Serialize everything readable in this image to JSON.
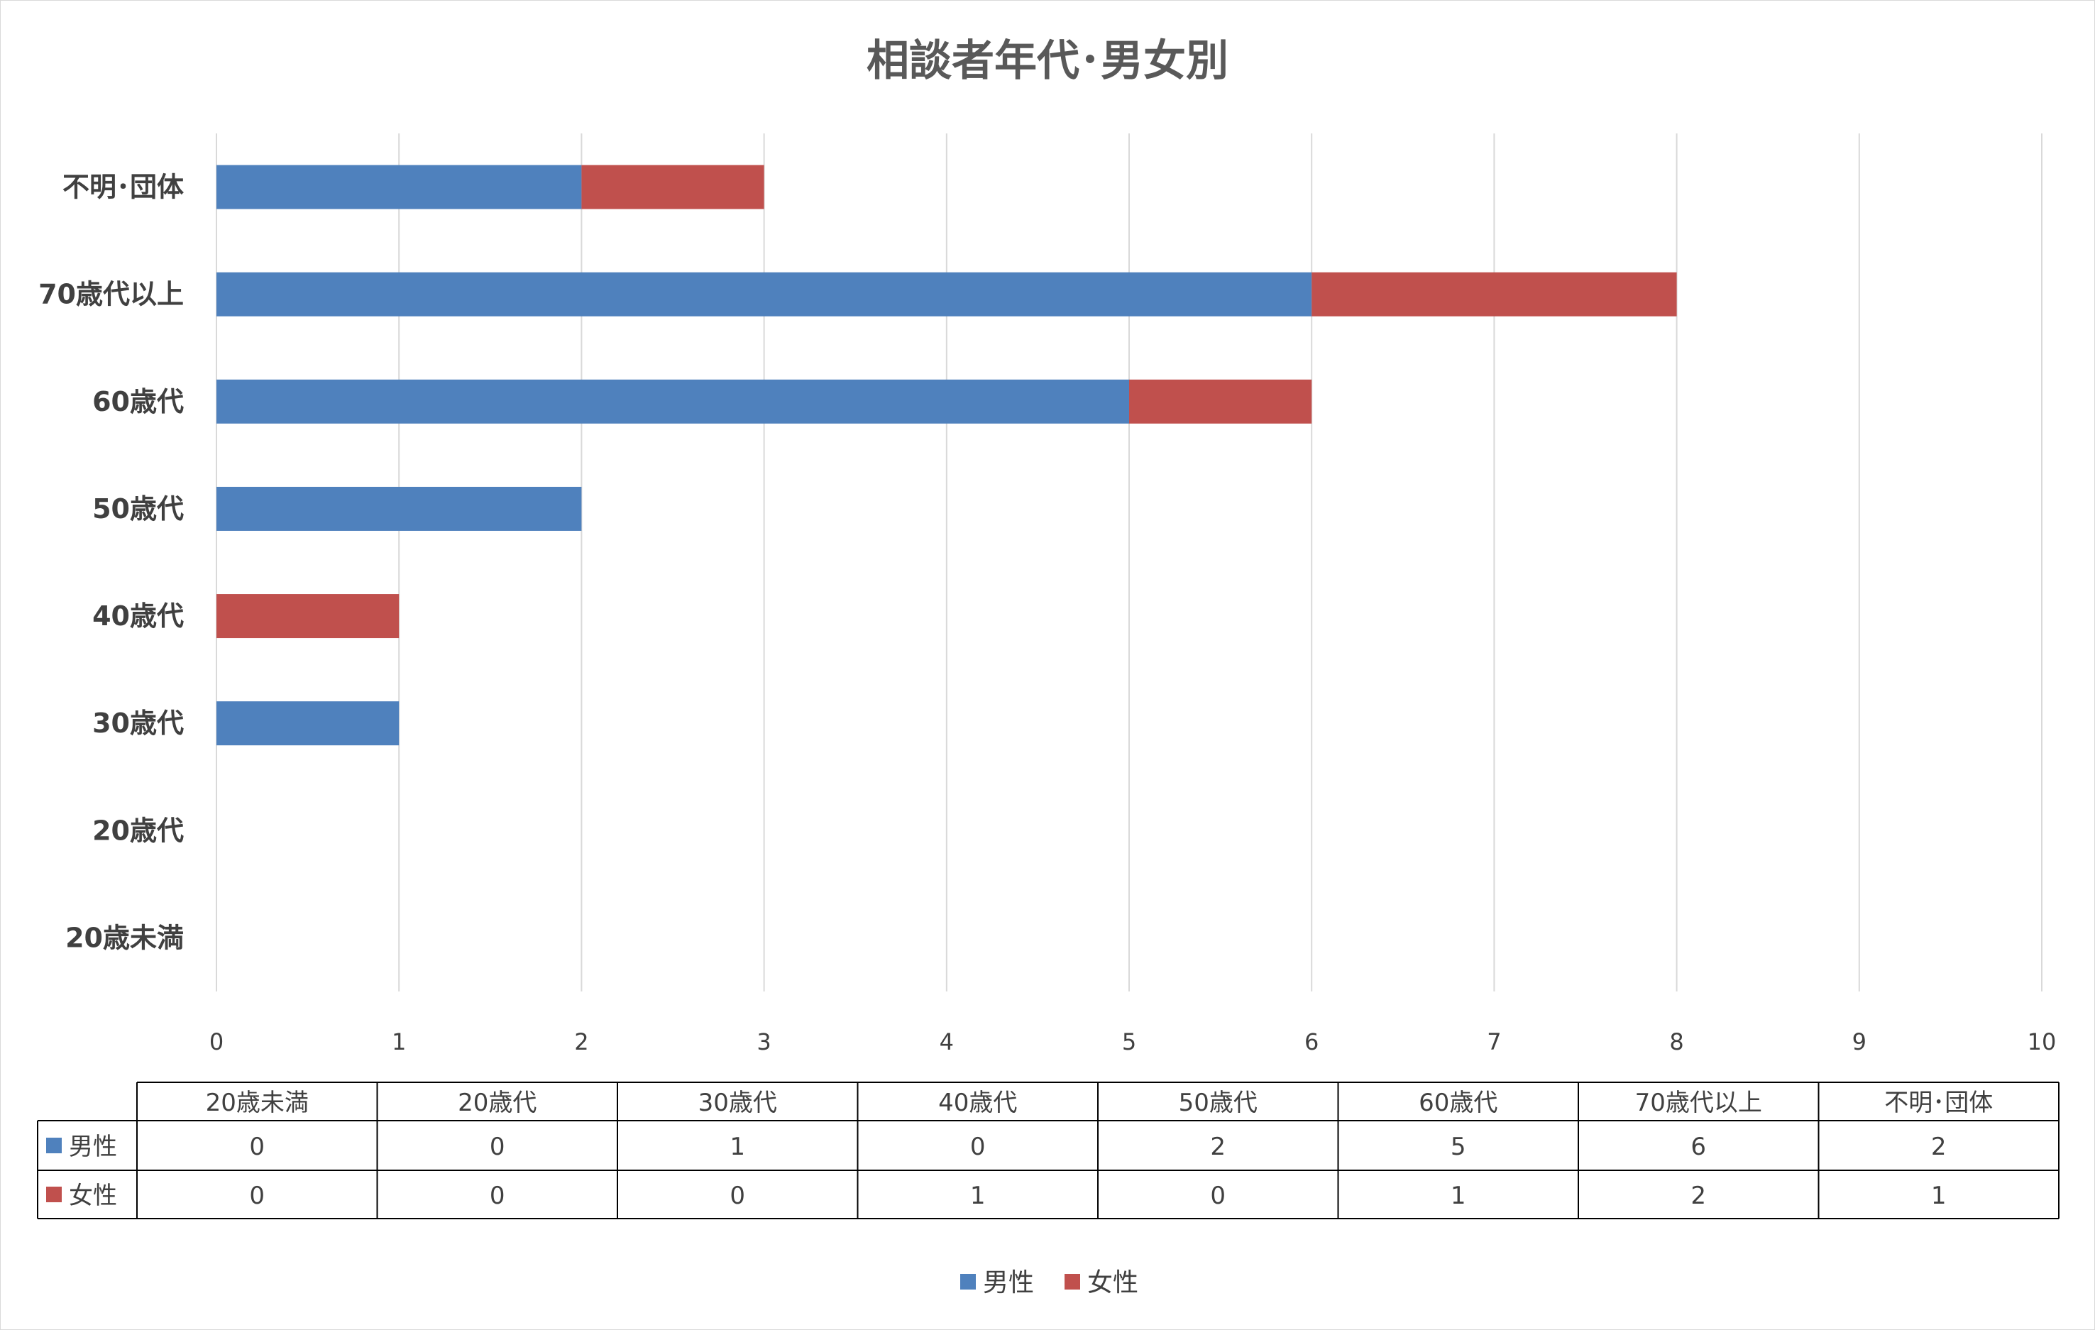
{
  "colors": {
    "male": "#4f81bd",
    "female": "#c0504d",
    "grid": "#d9d9d9",
    "text": "#404040",
    "title": "#595959"
  },
  "chart_data": {
    "type": "bar",
    "orientation": "horizontal",
    "stacked": true,
    "title": "相談者年代･男女別",
    "categories": [
      "20歳未満",
      "20歳代",
      "30歳代",
      "40歳代",
      "50歳代",
      "60歳代",
      "70歳代以上",
      "不明･団体"
    ],
    "series": [
      {
        "name": "男性",
        "values": [
          0,
          0,
          1,
          0,
          2,
          5,
          6,
          2
        ]
      },
      {
        "name": "女性",
        "values": [
          0,
          0,
          0,
          1,
          0,
          1,
          2,
          1
        ]
      }
    ],
    "xlim": [
      0,
      10
    ],
    "xticks": [
      "0",
      "1",
      "2",
      "3",
      "4",
      "5",
      "6",
      "7",
      "8",
      "9",
      "10"
    ],
    "grid": true,
    "data_table": true,
    "legend_position": "bottom"
  }
}
